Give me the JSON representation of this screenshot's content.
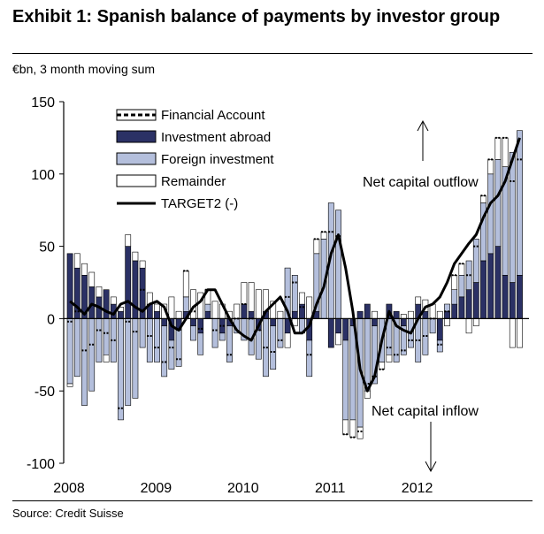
{
  "header": {
    "title": "Exhibit 1: Spanish balance of payments by investor group",
    "subtitle": "€bn, 3 month moving sum"
  },
  "footer": {
    "source": "Source: Credit Suisse"
  },
  "colors": {
    "investment_abroad": "#2b3165",
    "foreign_investment": "#b4bfdc",
    "remainder": "#ffffff",
    "target2": "#000000"
  },
  "chart_data": {
    "type": "bar",
    "title": "",
    "xlabel": "",
    "ylabel": "",
    "ylim": [
      -100,
      150
    ],
    "yticks": [
      -100,
      -50,
      0,
      50,
      100,
      150
    ],
    "ytick_labels": [
      "-100",
      "-50",
      "0",
      "50",
      "100",
      "150"
    ],
    "xtick_labels": [
      "2008",
      "2009",
      "2010",
      "2011",
      "2012"
    ],
    "start": "2008-01",
    "grid": false,
    "legend_position": "top-left",
    "legend": [
      "Financial Account",
      "Investment abroad",
      "Foreign investment",
      "Remainder",
      "TARGET2 (-)"
    ],
    "annotations": {
      "outflow": "Net capital outflow",
      "inflow": "Net capital inflow"
    },
    "series": [
      {
        "name": "Investment abroad",
        "values": [
          45,
          35,
          30,
          22,
          15,
          20,
          10,
          5,
          50,
          40,
          35,
          10,
          5,
          -5,
          -15,
          -8,
          5,
          -5,
          -10,
          5,
          0,
          -10,
          -5,
          0,
          10,
          5,
          -8,
          5,
          -5,
          0,
          -10,
          5,
          10,
          -15,
          5,
          0,
          -20,
          -10,
          -15,
          -5,
          5,
          10,
          -5,
          0,
          10,
          5,
          -5,
          0,
          10,
          5,
          0,
          -15,
          5,
          10,
          15,
          20,
          25,
          40,
          45,
          50,
          30,
          25,
          30
        ]
      },
      {
        "name": "Foreign investment",
        "values": [
          -45,
          -40,
          -60,
          -50,
          -30,
          -25,
          -30,
          -70,
          -60,
          -55,
          -20,
          -30,
          -30,
          -35,
          -20,
          -25,
          10,
          -10,
          -15,
          5,
          -20,
          -5,
          -25,
          -10,
          -15,
          -25,
          -20,
          -40,
          -30,
          -20,
          35,
          25,
          -10,
          -25,
          40,
          55,
          80,
          75,
          -55,
          -65,
          -75,
          -50,
          -40,
          -30,
          -25,
          -30,
          -20,
          -20,
          -30,
          -25,
          -10,
          -8,
          5,
          10,
          15,
          20,
          30,
          40,
          55,
          60,
          75,
          90,
          100
        ]
      },
      {
        "name": "Remainder",
        "values": [
          -2,
          10,
          8,
          10,
          7,
          -5,
          5,
          3,
          8,
          6,
          5,
          8,
          5,
          10,
          15,
          5,
          18,
          20,
          18,
          10,
          12,
          10,
          5,
          10,
          15,
          20,
          20,
          15,
          12,
          5,
          -10,
          -5,
          8,
          15,
          10,
          5,
          0,
          -8,
          -10,
          -12,
          -8,
          -5,
          5,
          -5,
          -5,
          0,
          3,
          5,
          5,
          8,
          10,
          5,
          -5,
          10,
          8,
          -10,
          -5,
          5,
          10,
          15,
          20,
          -20,
          -20
        ]
      },
      {
        "name": "TARGET2 (-)",
        "type": "line",
        "values": [
          12,
          8,
          3,
          10,
          8,
          5,
          3,
          10,
          12,
          8,
          5,
          10,
          12,
          8,
          -5,
          -8,
          0,
          8,
          12,
          20,
          20,
          10,
          0,
          -8,
          -12,
          -15,
          -5,
          5,
          10,
          15,
          5,
          -10,
          -10,
          -5,
          10,
          22,
          45,
          58,
          35,
          5,
          -35,
          -50,
          -40,
          -15,
          5,
          -5,
          -8,
          -10,
          0,
          8,
          10,
          15,
          25,
          38,
          45,
          52,
          58,
          70,
          80,
          85,
          95,
          110,
          125
        ]
      }
    ]
  }
}
